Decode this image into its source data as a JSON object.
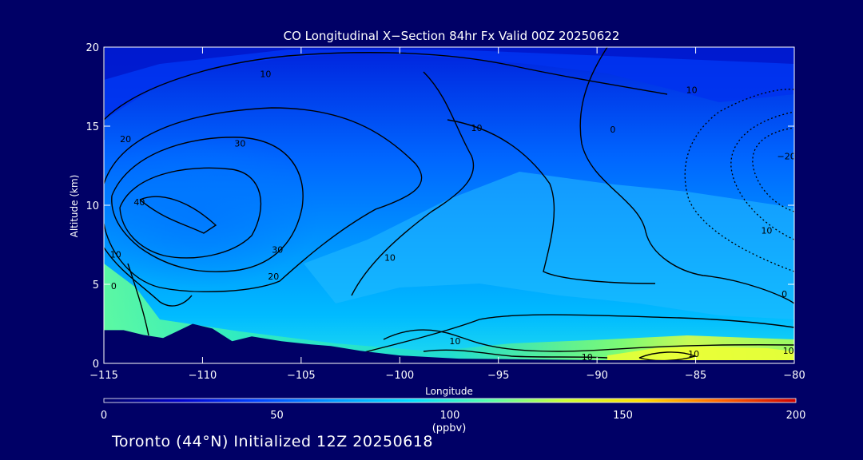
{
  "chart_data": {
    "type": "heatmap",
    "title": "CO Longitudinal X−Section 84hr  Fx Valid 00Z 20250622",
    "xlabel": "Longitude",
    "ylabel": "Altitude (km)",
    "xlim": [
      -115,
      -80
    ],
    "ylim": [
      0,
      20
    ],
    "x_ticks": [
      -115,
      -110,
      -105,
      -100,
      -95,
      -90,
      -85,
      -80
    ],
    "x_tick_labels": [
      "−115",
      "−110",
      "−105",
      "−100",
      "−95",
      "−90",
      "−85",
      "−80"
    ],
    "y_ticks": [
      0,
      5,
      10,
      15,
      20
    ],
    "y_tick_labels": [
      "0",
      "5",
      "10",
      "15",
      "20"
    ],
    "colorbar": {
      "label": "(ppbv)",
      "min": 0,
      "max": 200,
      "ticks": [
        0,
        50,
        100,
        150,
        200
      ],
      "tick_labels": [
        "0",
        "50",
        "100",
        "150",
        "200"
      ],
      "colors": [
        "#000066",
        "#0000cc",
        "#0044ff",
        "#0099ff",
        "#00ddff",
        "#55ffaa",
        "#ccff33",
        "#ffdd00",
        "#ff6600",
        "#cc0000"
      ]
    },
    "contour_labels": [
      {
        "text": "10",
        "lon": -106.8,
        "alt": 18.1
      },
      {
        "text": "10",
        "lon": -96.1,
        "alt": 14.7
      },
      {
        "text": "10",
        "lon": -85.2,
        "alt": 17.1
      },
      {
        "text": "0",
        "lon": -89.2,
        "alt": 14.6
      },
      {
        "text": "30",
        "lon": -108.1,
        "alt": 13.7
      },
      {
        "text": "20",
        "lon": -113.9,
        "alt": 14.0
      },
      {
        "text": "40",
        "lon": -113.2,
        "alt": 10.0
      },
      {
        "text": "30",
        "lon": -106.2,
        "alt": 7.0
      },
      {
        "text": "20",
        "lon": -106.4,
        "alt": 5.3
      },
      {
        "text": "10",
        "lon": -114.4,
        "alt": 6.7
      },
      {
        "text": "0",
        "lon": -114.5,
        "alt": 4.7
      },
      {
        "text": "10",
        "lon": -100.5,
        "alt": 6.5
      },
      {
        "text": "10",
        "lon": -97.2,
        "alt": 1.2
      },
      {
        "text": "10",
        "lon": -90.5,
        "alt": 0.2
      },
      {
        "text": "10",
        "lon": -85.1,
        "alt": 0.4
      },
      {
        "text": "10",
        "lon": -80.3,
        "alt": 0.6
      },
      {
        "text": "10",
        "lon": -81.4,
        "alt": 8.2
      },
      {
        "text": "−20",
        "lon": -80.4,
        "alt": 12.9
      },
      {
        "text": "0",
        "lon": -80.5,
        "alt": 4.2
      }
    ],
    "terrain_km": [
      {
        "lon": -115,
        "alt": 2.1
      },
      {
        "lon": -114,
        "alt": 2.1
      },
      {
        "lon": -113,
        "alt": 1.8
      },
      {
        "lon": -112,
        "alt": 1.6
      },
      {
        "lon": -111.5,
        "alt": 1.9
      },
      {
        "lon": -110.5,
        "alt": 2.5
      },
      {
        "lon": -109.5,
        "alt": 2.2
      },
      {
        "lon": -108.5,
        "alt": 1.4
      },
      {
        "lon": -107.5,
        "alt": 1.7
      },
      {
        "lon": -107,
        "alt": 1.6
      },
      {
        "lon": -106,
        "alt": 1.4
      },
      {
        "lon": -104.5,
        "alt": 1.2
      },
      {
        "lon": -103.5,
        "alt": 1.1
      },
      {
        "lon": -102,
        "alt": 0.8
      },
      {
        "lon": -100,
        "alt": 0.5
      },
      {
        "lon": -97,
        "alt": 0.3
      },
      {
        "lon": -90,
        "alt": 0.2
      },
      {
        "lon": -80,
        "alt": 0.2
      }
    ]
  },
  "footer": "Toronto (44°N) Initialized 12Z 20250618"
}
